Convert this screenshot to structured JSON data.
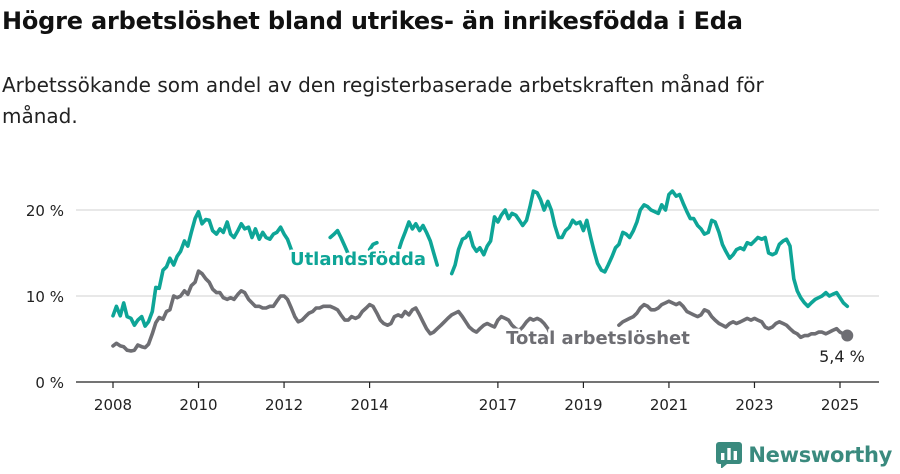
{
  "header": {
    "title": "Högre arbetslöshet bland utrikes- än inrikesfödda i Eda",
    "subtitle": "Arbetssökande som andel av den registerbaserade arbetskraften månad för månad."
  },
  "brand": {
    "name": "Newsworthy"
  },
  "colors": {
    "foreign": "#0ea597",
    "total": "#6e6e73",
    "grid": "#d9d9d9",
    "axis": "#222222"
  },
  "chart_data": {
    "type": "line",
    "title": "Högre arbetslöshet bland utrikes- än inrikesfödda i Eda",
    "xlabel": "",
    "ylabel": "",
    "xlim": [
      2008.0,
      2025.4
    ],
    "ylim": [
      0,
      24
    ],
    "ytick_values": [
      0,
      10,
      20
    ],
    "ytick_labels": [
      "0 %",
      "10 %",
      "20 %"
    ],
    "xtick_values": [
      2008,
      2010,
      2012,
      2014,
      2017,
      2019,
      2021,
      2023,
      2025
    ],
    "xtick_labels": [
      "2008",
      "2010",
      "2012",
      "2014",
      "2017",
      "2019",
      "2021",
      "2023",
      "2025"
    ],
    "grid": true,
    "end_label": "5,4 %",
    "series": [
      {
        "name": "Utlandsfödda",
        "label": "Utlandsfödda",
        "segments": [
          {
            "x": [
              2008.0,
              2008.08,
              2008.17,
              2008.25,
              2008.33,
              2008.42,
              2008.5,
              2008.58,
              2008.67,
              2008.75,
              2008.83,
              2008.92,
              2009.0,
              2009.08,
              2009.17,
              2009.25,
              2009.33,
              2009.42,
              2009.5,
              2009.58,
              2009.67,
              2009.75,
              2009.83,
              2009.92,
              2010.0,
              2010.08,
              2010.17,
              2010.25,
              2010.33,
              2010.42,
              2010.5,
              2010.58,
              2010.67,
              2010.75,
              2010.83,
              2010.92,
              2011.0,
              2011.08,
              2011.17,
              2011.25,
              2011.33,
              2011.42,
              2011.5,
              2011.58,
              2011.67,
              2011.75,
              2011.83,
              2011.92,
              2012.0,
              2012.08,
              2012.17,
              2012.25
            ],
            "y": [
              7.7,
              8.8,
              7.7,
              9.2,
              7.6,
              7.4,
              6.6,
              7.2,
              7.6,
              6.5,
              7.0,
              8.2,
              11.0,
              10.9,
              13.0,
              13.4,
              14.4,
              13.6,
              14.6,
              15.2,
              16.4,
              15.8,
              17.4,
              19.0,
              19.8,
              18.4,
              18.9,
              18.8,
              17.6,
              17.2,
              17.8,
              17.4,
              18.6,
              17.2,
              16.8,
              17.6,
              18.4,
              17.8,
              18.0,
              16.8,
              17.8,
              16.6,
              17.4,
              16.8,
              16.6,
              17.2,
              17.4,
              18.0,
              17.2,
              16.6,
              15.4,
              14.8
            ]
          },
          {
            "x": [
              2013.08,
              2013.17,
              2013.25,
              2013.33,
              2013.42,
              2013.5
            ],
            "y": [
              16.8,
              17.2,
              17.6,
              16.8,
              15.8,
              14.9
            ]
          },
          {
            "x": [
              2014.0,
              2014.08,
              2014.17
            ],
            "y": [
              15.4,
              16.0,
              16.2
            ]
          },
          {
            "x": [
              2014.7,
              2014.75,
              2014.83,
              2014.92,
              2015.0,
              2015.08,
              2015.17,
              2015.25,
              2015.33,
              2015.42,
              2015.5,
              2015.58
            ],
            "y": [
              15.6,
              16.4,
              17.4,
              18.6,
              17.8,
              18.4,
              17.6,
              18.2,
              17.4,
              16.4,
              15.0,
              13.6
            ]
          },
          {
            "x": [
              2015.92,
              2016.0,
              2016.08,
              2016.17,
              2016.25,
              2016.33,
              2016.42,
              2016.5,
              2016.58,
              2016.67,
              2016.75,
              2016.83,
              2016.92,
              2017.0,
              2017.08,
              2017.17,
              2017.25,
              2017.33,
              2017.42,
              2017.5,
              2017.58,
              2017.67,
              2017.75,
              2017.83,
              2017.92,
              2018.0,
              2018.08,
              2018.17,
              2018.25,
              2018.33,
              2018.42,
              2018.5,
              2018.58,
              2018.67,
              2018.75,
              2018.83,
              2018.92,
              2019.0,
              2019.08,
              2019.17,
              2019.25,
              2019.33,
              2019.42,
              2019.5,
              2019.58,
              2019.67,
              2019.75,
              2019.83,
              2019.92,
              2020.0,
              2020.08,
              2020.17,
              2020.25,
              2020.33,
              2020.42,
              2020.5,
              2020.58,
              2020.67,
              2020.75,
              2020.83,
              2020.92,
              2021.0,
              2021.08,
              2021.17,
              2021.25,
              2021.33,
              2021.42,
              2021.5,
              2021.58,
              2021.67,
              2021.75,
              2021.83,
              2021.92,
              2022.0,
              2022.08,
              2022.17,
              2022.25,
              2022.33,
              2022.42,
              2022.5,
              2022.58,
              2022.67,
              2022.75,
              2022.83,
              2022.92,
              2023.0,
              2023.08,
              2023.17,
              2023.25,
              2023.33,
              2023.42,
              2023.5,
              2023.58,
              2023.67,
              2023.75,
              2023.83,
              2023.92,
              2024.0,
              2024.08,
              2024.17,
              2024.25,
              2024.33,
              2024.42,
              2024.5,
              2024.58,
              2024.67,
              2024.75,
              2024.83,
              2024.92,
              2025.0,
              2025.08,
              2025.17
            ],
            "y": [
              12.6,
              13.6,
              15.4,
              16.6,
              16.8,
              17.4,
              15.8,
              15.2,
              15.6,
              14.8,
              15.8,
              16.4,
              19.2,
              18.6,
              19.4,
              20.0,
              19.0,
              19.6,
              19.4,
              18.8,
              18.2,
              18.8,
              20.4,
              22.2,
              22.0,
              21.2,
              20.0,
              21.0,
              20.0,
              18.2,
              16.8,
              16.8,
              17.6,
              18.0,
              18.8,
              18.4,
              18.6,
              17.6,
              18.8,
              16.8,
              15.2,
              13.8,
              13.0,
              12.8,
              13.6,
              14.6,
              15.6,
              16.0,
              17.4,
              17.2,
              16.8,
              17.6,
              18.6,
              20.0,
              20.6,
              20.4,
              20.0,
              19.8,
              19.6,
              20.6,
              20.0,
              21.8,
              22.2,
              21.6,
              21.8,
              20.8,
              19.8,
              19.0,
              19.0,
              18.2,
              17.8,
              17.2,
              17.4,
              18.8,
              18.6,
              17.4,
              16.0,
              15.2,
              14.4,
              14.8,
              15.4,
              15.6,
              15.4,
              16.2,
              16.0,
              16.4,
              16.8,
              16.6,
              16.8,
              15.0,
              14.8,
              15.0,
              16.0,
              16.4,
              16.6,
              15.8,
              12.0,
              10.6,
              9.8,
              9.2,
              8.8,
              9.2,
              9.6,
              9.8,
              10.0,
              10.4,
              10.0,
              10.2,
              10.4,
              9.8,
              9.2,
              8.8
            ]
          }
        ]
      },
      {
        "name": "Total arbetslöshet",
        "label": "Total arbetslöshet",
        "segments": [
          {
            "x": [
              2008.0,
              2008.08,
              2008.17,
              2008.25,
              2008.33,
              2008.42,
              2008.5,
              2008.58,
              2008.67,
              2008.75,
              2008.83,
              2008.92,
              2009.0,
              2009.08,
              2009.17,
              2009.25,
              2009.33,
              2009.42,
              2009.5,
              2009.58,
              2009.67,
              2009.75,
              2009.83,
              2009.92,
              2010.0,
              2010.08,
              2010.17,
              2010.25,
              2010.33,
              2010.42,
              2010.5,
              2010.58,
              2010.67,
              2010.75,
              2010.83,
              2010.92,
              2011.0,
              2011.08,
              2011.17,
              2011.25,
              2011.33,
              2011.42,
              2011.5,
              2011.58,
              2011.67,
              2011.75,
              2011.83,
              2011.92,
              2012.0,
              2012.08,
              2012.17,
              2012.25,
              2012.33,
              2012.42,
              2012.5,
              2012.58,
              2012.67,
              2012.75,
              2012.83,
              2012.92,
              2013.0,
              2013.08,
              2013.17,
              2013.25,
              2013.33,
              2013.42,
              2013.5,
              2013.58,
              2013.67,
              2013.75,
              2013.83,
              2013.92,
              2014.0,
              2014.08,
              2014.17,
              2014.25,
              2014.33,
              2014.42,
              2014.5,
              2014.58,
              2014.67,
              2014.75,
              2014.83,
              2014.92,
              2015.0,
              2015.08,
              2015.17,
              2015.25,
              2015.33,
              2015.42,
              2015.5,
              2015.58,
              2015.67,
              2015.75,
              2015.83,
              2015.92,
              2016.0,
              2016.08,
              2016.17,
              2016.25,
              2016.33,
              2016.42,
              2016.5,
              2016.58,
              2016.67,
              2016.75,
              2016.83,
              2016.92,
              2017.0,
              2017.08,
              2017.17,
              2017.25,
              2017.33,
              2017.42,
              2017.5,
              2017.58,
              2017.67,
              2017.75,
              2017.83,
              2017.92,
              2018.0,
              2018.08,
              2018.17,
              2018.25
            ],
            "y": [
              4.2,
              4.5,
              4.2,
              4.1,
              3.7,
              3.6,
              3.7,
              4.3,
              4.1,
              4.0,
              4.4,
              5.6,
              6.9,
              7.5,
              7.3,
              8.2,
              8.4,
              10.0,
              9.8,
              10.0,
              10.6,
              10.2,
              11.2,
              11.6,
              12.9,
              12.6,
              12.0,
              11.6,
              10.8,
              10.4,
              10.4,
              9.8,
              9.6,
              9.8,
              9.6,
              10.2,
              10.6,
              10.4,
              9.6,
              9.2,
              8.8,
              8.8,
              8.6,
              8.6,
              8.8,
              8.8,
              9.4,
              10.0,
              10.0,
              9.6,
              8.6,
              7.6,
              7.0,
              7.2,
              7.6,
              8.0,
              8.2,
              8.6,
              8.6,
              8.8,
              8.8,
              8.8,
              8.6,
              8.4,
              7.8,
              7.2,
              7.2,
              7.6,
              7.4,
              7.6,
              8.2,
              8.6,
              9.0,
              8.8,
              8.0,
              7.2,
              6.8,
              6.6,
              6.8,
              7.6,
              7.8,
              7.6,
              8.2,
              7.8,
              8.4,
              8.6,
              7.8,
              7.0,
              6.2,
              5.6,
              5.8,
              6.2,
              6.6,
              7.0,
              7.4,
              7.8,
              8.0,
              8.2,
              7.6,
              7.0,
              6.4,
              6.0,
              5.8,
              6.2,
              6.6,
              6.8,
              6.6,
              6.4,
              7.2,
              7.6,
              7.4,
              7.2,
              6.6,
              6.2,
              6.0,
              6.4,
              7.0,
              7.4,
              7.2,
              7.4,
              7.2,
              6.8,
              6.2,
              5.4
            ]
          },
          {
            "x": [
              2019.83,
              2019.92,
              2020.0,
              2020.08,
              2020.17,
              2020.25,
              2020.33,
              2020.42,
              2020.5,
              2020.58,
              2020.67,
              2020.75,
              2020.83,
              2020.92,
              2021.0,
              2021.08,
              2021.17,
              2021.25,
              2021.33,
              2021.42,
              2021.5,
              2021.58,
              2021.67,
              2021.75,
              2021.83,
              2021.92,
              2022.0,
              2022.08,
              2022.17,
              2022.25,
              2022.33,
              2022.42,
              2022.5,
              2022.58,
              2022.67,
              2022.75,
              2022.83,
              2022.92,
              2023.0,
              2023.08,
              2023.17,
              2023.25,
              2023.33,
              2023.42,
              2023.5,
              2023.58,
              2023.67,
              2023.75,
              2023.83,
              2023.92,
              2024.0,
              2024.08,
              2024.17,
              2024.25,
              2024.33,
              2024.42,
              2024.5,
              2024.58,
              2024.67,
              2024.75,
              2024.83,
              2024.92,
              2025.0,
              2025.08,
              2025.17
            ],
            "y": [
              6.6,
              7.0,
              7.2,
              7.4,
              7.6,
              8.0,
              8.6,
              9.0,
              8.8,
              8.4,
              8.4,
              8.6,
              9.0,
              9.2,
              9.4,
              9.2,
              9.0,
              9.2,
              8.8,
              8.2,
              8.0,
              7.8,
              7.6,
              7.8,
              8.4,
              8.2,
              7.6,
              7.2,
              6.8,
              6.6,
              6.4,
              6.8,
              7.0,
              6.8,
              7.0,
              7.2,
              7.4,
              7.2,
              7.4,
              7.2,
              7.0,
              6.4,
              6.2,
              6.4,
              6.8,
              7.0,
              6.8,
              6.6,
              6.2,
              5.8,
              5.6,
              5.2,
              5.4,
              5.4,
              5.6,
              5.6,
              5.8,
              5.8,
              5.6,
              5.8,
              6.0,
              6.2,
              5.8,
              5.6,
              5.4
            ]
          }
        ]
      }
    ]
  }
}
